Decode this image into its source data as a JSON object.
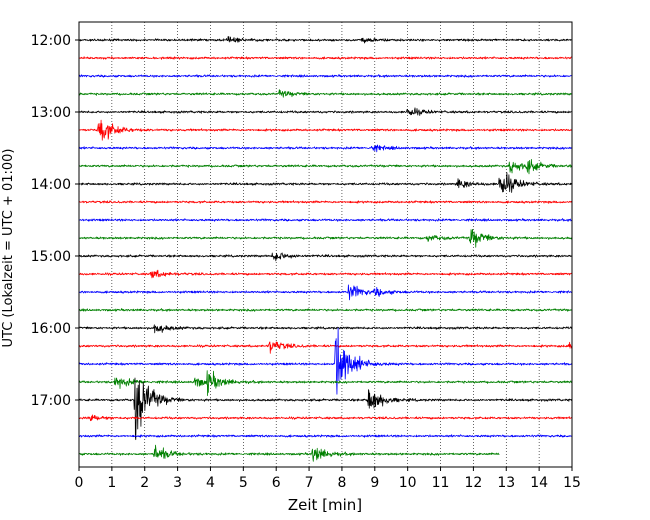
{
  "chart_data": {
    "type": "line",
    "title": "",
    "xlabel": "Zeit  [min]",
    "ylabel": "UTC (Lokalzeit = UTC + 01:00)",
    "xlim": [
      0,
      15
    ],
    "x_ticks": [
      0,
      1,
      2,
      3,
      4,
      5,
      6,
      7,
      8,
      9,
      10,
      11,
      12,
      13,
      14,
      15
    ],
    "y_ticks": [
      {
        "label": "12:00",
        "row": 0
      },
      {
        "label": "13:00",
        "row": 4
      },
      {
        "label": "14:00",
        "row": 8
      },
      {
        "label": "15:00",
        "row": 12
      },
      {
        "label": "16:00",
        "row": 16
      },
      {
        "label": "17:00",
        "row": 20
      }
    ],
    "grid": {
      "x": true,
      "y": false,
      "style": "dotted"
    },
    "trace_interval_min": 15,
    "series_colors": [
      "#000000",
      "#ff0000",
      "#0000ff",
      "#008000"
    ],
    "traces": [
      {
        "start": "12:00",
        "end_min": 15,
        "events": [
          {
            "t": 4.5,
            "amp": 0.15
          },
          {
            "t": 8.6,
            "amp": 0.15
          }
        ]
      },
      {
        "start": "12:15",
        "end_min": 15,
        "events": []
      },
      {
        "start": "12:30",
        "end_min": 15,
        "events": []
      },
      {
        "start": "12:45",
        "end_min": 15,
        "events": [
          {
            "t": 6.1,
            "amp": 0.2
          }
        ]
      },
      {
        "start": "13:00",
        "end_min": 15,
        "events": [
          {
            "t": 10.0,
            "amp": 0.3
          }
        ]
      },
      {
        "start": "13:15",
        "end_min": 15,
        "events": [
          {
            "t": 0.6,
            "amp": 0.9
          }
        ]
      },
      {
        "start": "13:30",
        "end_min": 15,
        "events": [
          {
            "t": 8.9,
            "amp": 0.2
          }
        ]
      },
      {
        "start": "13:45",
        "end_min": 15,
        "events": [
          {
            "t": 13.1,
            "amp": 0.4
          },
          {
            "t": 13.6,
            "amp": 0.35
          }
        ]
      },
      {
        "start": "14:00",
        "end_min": 15,
        "events": [
          {
            "t": 12.8,
            "amp": 1.0
          },
          {
            "t": 11.5,
            "amp": 0.3
          }
        ]
      },
      {
        "start": "14:15",
        "end_min": 15,
        "events": []
      },
      {
        "start": "14:30",
        "end_min": 15,
        "events": []
      },
      {
        "start": "14:45",
        "end_min": 15,
        "events": [
          {
            "t": 11.9,
            "amp": 0.6
          },
          {
            "t": 10.6,
            "amp": 0.2
          }
        ]
      },
      {
        "start": "15:00",
        "end_min": 15,
        "events": [
          {
            "t": 5.9,
            "amp": 0.35
          }
        ]
      },
      {
        "start": "15:15",
        "end_min": 15,
        "events": [
          {
            "t": 2.2,
            "amp": 0.25
          }
        ]
      },
      {
        "start": "15:30",
        "end_min": 15,
        "events": [
          {
            "t": 8.2,
            "amp": 0.5
          },
          {
            "t": 9.0,
            "amp": 0.2
          }
        ]
      },
      {
        "start": "15:45",
        "end_min": 15,
        "events": []
      },
      {
        "start": "16:00",
        "end_min": 15,
        "events": [
          {
            "t": 2.3,
            "amp": 0.3
          }
        ]
      },
      {
        "start": "16:15",
        "end_min": 15,
        "events": [
          {
            "t": 5.8,
            "amp": 0.4
          },
          {
            "t": 14.9,
            "amp": 0.3
          }
        ]
      },
      {
        "start": "16:30",
        "end_min": 15,
        "events": [
          {
            "t": 7.8,
            "amp": 2.6
          }
        ]
      },
      {
        "start": "16:45",
        "end_min": 15,
        "events": [
          {
            "t": 1.1,
            "amp": 0.4
          },
          {
            "t": 3.5,
            "amp": 0.35
          },
          {
            "t": 3.9,
            "amp": 0.6
          }
        ]
      },
      {
        "start": "17:00",
        "end_min": 15,
        "events": [
          {
            "t": 1.7,
            "amp": 2.5
          },
          {
            "t": 8.8,
            "amp": 0.9
          }
        ]
      },
      {
        "start": "17:15",
        "end_min": 15,
        "events": [
          {
            "t": 0.3,
            "amp": 0.2
          }
        ]
      },
      {
        "start": "17:30",
        "end_min": 15,
        "events": []
      },
      {
        "start": "17:45",
        "end_min": 12.8,
        "events": [
          {
            "t": 2.3,
            "amp": 0.5
          },
          {
            "t": 7.1,
            "amp": 0.55
          }
        ]
      }
    ]
  }
}
